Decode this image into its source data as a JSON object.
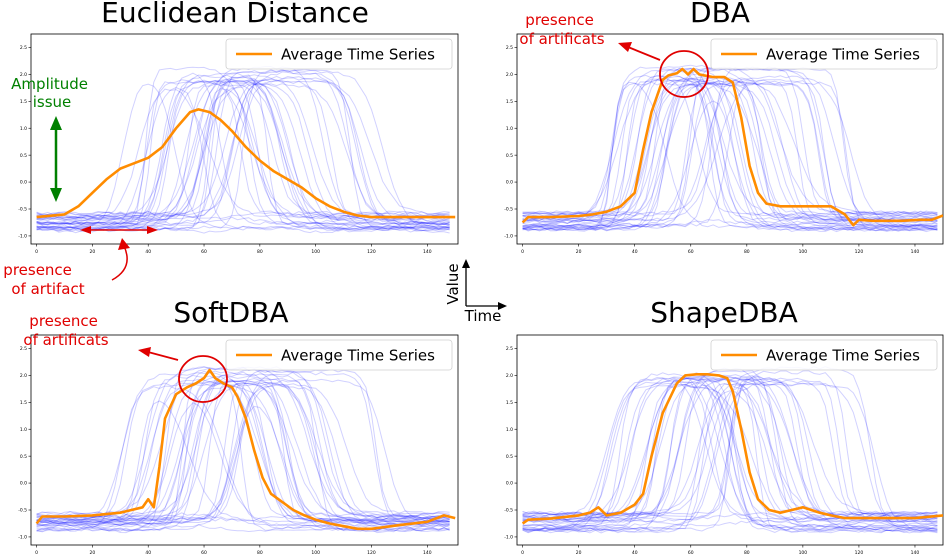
{
  "figure": {
    "value_label": "Value",
    "time_label": "Time"
  },
  "chart_data": [
    {
      "type": "line",
      "title": "Euclidean Distance",
      "legend": "Average Time Series",
      "legend_position": "top-right",
      "xlim": [
        -2,
        151
      ],
      "ylim": [
        -1.15,
        2.75
      ],
      "xticks": [
        0,
        20,
        40,
        60,
        80,
        100,
        120,
        140
      ],
      "yticks": [
        -1.0,
        -0.5,
        0.0,
        0.5,
        1.0,
        1.5,
        2.0,
        2.5
      ],
      "tick_labels_x": [
        "0",
        "20",
        "40",
        "60",
        "80",
        "100",
        "120",
        "140"
      ],
      "tick_labels_y": [
        "-1.0",
        "-0.5",
        "0.0",
        "0.5",
        "1.0",
        "1.5",
        "2.0",
        "2.5"
      ],
      "series_color": "#ff8c00",
      "background_series_color": "#0000ff",
      "average": {
        "x": [
          0,
          10,
          15,
          20,
          25,
          30,
          35,
          40,
          45,
          50,
          55,
          58,
          62,
          66,
          70,
          75,
          80,
          85,
          90,
          95,
          100,
          105,
          110,
          115,
          120,
          130,
          140,
          150
        ],
        "y": [
          -0.65,
          -0.6,
          -0.45,
          -0.2,
          0.05,
          0.25,
          0.35,
          0.45,
          0.65,
          1.0,
          1.3,
          1.35,
          1.3,
          1.15,
          0.95,
          0.65,
          0.4,
          0.2,
          0.05,
          -0.1,
          -0.3,
          -0.45,
          -0.55,
          -0.62,
          -0.65,
          -0.65,
          -0.65,
          -0.65
        ]
      },
      "annotations": [
        {
          "text": "Amplitude\nissue",
          "color": "#008000"
        },
        {
          "text": "presence\nof artifact",
          "color": "#ff0000"
        }
      ]
    },
    {
      "type": "line",
      "title": "DBA",
      "legend": "Average Time Series",
      "legend_position": "top-right",
      "xlim": [
        -2,
        150
      ],
      "ylim": [
        -1.15,
        2.75
      ],
      "xticks": [
        0,
        20,
        40,
        60,
        80,
        100,
        120,
        140
      ],
      "yticks": [
        -1.0,
        -0.5,
        0.0,
        0.5,
        1.0,
        1.5,
        2.0,
        2.5
      ],
      "tick_labels_x": [
        "0",
        "20",
        "40",
        "60",
        "80",
        "100",
        "120",
        "140"
      ],
      "tick_labels_y": [
        "-1.0",
        "-0.5",
        "0.0",
        "0.5",
        "1.0",
        "1.5",
        "2.0",
        "2.5"
      ],
      "series_color": "#ff8c00",
      "background_series_color": "#0000ff",
      "average": {
        "x": [
          0,
          2,
          10,
          20,
          25,
          30,
          35,
          40,
          43,
          46,
          50,
          52,
          55,
          57,
          59,
          61,
          63,
          65,
          68,
          72,
          75,
          78,
          81,
          84,
          87,
          92,
          100,
          110,
          115,
          118,
          120,
          125,
          135,
          142,
          146,
          150
        ],
        "y": [
          -0.75,
          -0.65,
          -0.65,
          -0.63,
          -0.6,
          -0.55,
          -0.45,
          -0.2,
          0.6,
          1.3,
          1.9,
          1.98,
          2.02,
          2.1,
          2.0,
          2.1,
          2.0,
          1.98,
          1.95,
          1.95,
          1.85,
          1.2,
          0.3,
          -0.2,
          -0.4,
          -0.45,
          -0.45,
          -0.45,
          -0.6,
          -0.8,
          -0.7,
          -0.72,
          -0.72,
          -0.7,
          -0.7,
          -0.62
        ]
      },
      "annotations": [
        {
          "text": "presence\nof artificats",
          "color": "#ff0000"
        }
      ]
    },
    {
      "type": "line",
      "title": "SoftDBA",
      "legend": "Average Time Series",
      "legend_position": "top-right",
      "xlim": [
        -2,
        151
      ],
      "ylim": [
        -1.15,
        2.75
      ],
      "xticks": [
        0,
        20,
        40,
        60,
        80,
        100,
        120,
        140
      ],
      "yticks": [
        -1.0,
        -0.5,
        0.0,
        0.5,
        1.0,
        1.5,
        2.0,
        2.5
      ],
      "tick_labels_x": [
        "0",
        "20",
        "40",
        "60",
        "80",
        "100",
        "120",
        "140"
      ],
      "tick_labels_y": [
        "-1.0",
        "-0.5",
        "0.0",
        "0.5",
        "1.0",
        "1.5",
        "2.0",
        "2.5"
      ],
      "series_color": "#ff8c00",
      "background_series_color": "#0000ff",
      "average": {
        "x": [
          0,
          2,
          10,
          20,
          30,
          38,
          40,
          42,
          44,
          46,
          50,
          54,
          57,
          60,
          62,
          64,
          67,
          70,
          72,
          75,
          78,
          81,
          84,
          88,
          92,
          96,
          100,
          105,
          110,
          115,
          120,
          130,
          140,
          146,
          150
        ],
        "y": [
          -0.75,
          -0.62,
          -0.62,
          -0.6,
          -0.55,
          -0.45,
          -0.3,
          -0.45,
          0.3,
          1.2,
          1.65,
          1.78,
          1.85,
          1.95,
          2.1,
          1.95,
          1.85,
          1.78,
          1.6,
          1.2,
          0.6,
          0.1,
          -0.2,
          -0.35,
          -0.5,
          -0.6,
          -0.68,
          -0.75,
          -0.8,
          -0.85,
          -0.85,
          -0.78,
          -0.72,
          -0.6,
          -0.65
        ]
      },
      "annotations": [
        {
          "text": "presence\nof artificats",
          "color": "#ff0000"
        }
      ]
    },
    {
      "type": "line",
      "title": "ShapeDBA",
      "legend": "Average Time Series",
      "legend_position": "top-right",
      "xlim": [
        -2,
        150
      ],
      "ylim": [
        -1.15,
        2.75
      ],
      "xticks": [
        0,
        20,
        40,
        60,
        80,
        100,
        120,
        140
      ],
      "yticks": [
        -1.0,
        -0.5,
        0.0,
        0.5,
        1.0,
        1.5,
        2.0,
        2.5
      ],
      "tick_labels_x": [
        "0",
        "20",
        "40",
        "60",
        "80",
        "100",
        "120",
        "140"
      ],
      "tick_labels_y": [
        "-1.0",
        "-0.5",
        "0.0",
        "0.5",
        "1.0",
        "1.5",
        "2.0",
        "2.5"
      ],
      "series_color": "#ff8c00",
      "background_series_color": "#0000ff",
      "average": {
        "x": [
          0,
          2,
          10,
          20,
          24,
          27,
          30,
          35,
          40,
          43,
          46,
          50,
          55,
          58,
          62,
          66,
          70,
          73,
          75,
          78,
          81,
          84,
          88,
          92,
          96,
          100,
          103,
          106,
          110,
          115,
          120,
          130,
          140,
          150
        ],
        "y": [
          -0.75,
          -0.68,
          -0.66,
          -0.6,
          -0.55,
          -0.45,
          -0.6,
          -0.55,
          -0.4,
          -0.2,
          0.5,
          1.3,
          1.85,
          2.0,
          2.02,
          2.02,
          2.0,
          1.95,
          1.7,
          1.0,
          0.2,
          -0.3,
          -0.5,
          -0.55,
          -0.5,
          -0.45,
          -0.5,
          -0.55,
          -0.6,
          -0.65,
          -0.65,
          -0.65,
          -0.65,
          -0.6
        ]
      },
      "annotations": []
    }
  ]
}
